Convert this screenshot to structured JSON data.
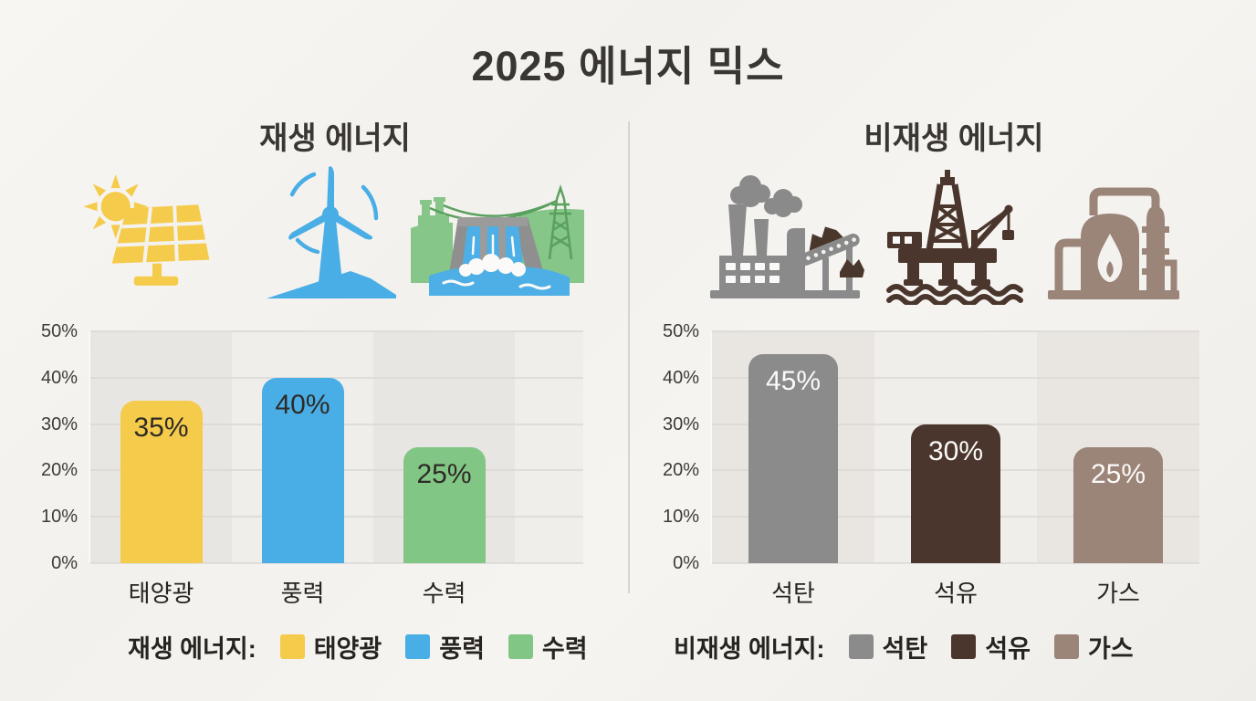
{
  "title": "2025 에너지 믹스",
  "unit": "%",
  "panels": [
    {
      "subtitle": "재생 에너지",
      "icons": [
        "solar-panel-icon",
        "wind-turbine-icon",
        "hydro-dam-icon"
      ],
      "legend_title": "재생 에너지:",
      "legend": [
        {
          "label": "태양광",
          "color": "#F5CB4B"
        },
        {
          "label": "풍력",
          "color": "#49AEE6"
        },
        {
          "label": "수력",
          "color": "#82C685"
        }
      ]
    },
    {
      "subtitle": "비재생 에너지",
      "icons": [
        "coal-plant-icon",
        "oil-rig-icon",
        "gas-refinery-icon"
      ],
      "legend_title": "비재생 에너지:",
      "legend": [
        {
          "label": "석탄",
          "color": "#8B8B8B"
        },
        {
          "label": "석유",
          "color": "#4B362D"
        },
        {
          "label": "가스",
          "color": "#9B8478"
        }
      ]
    }
  ],
  "chart_data": [
    {
      "type": "bar",
      "title": "재생 에너지",
      "categories": [
        "태양광",
        "풍력",
        "수력"
      ],
      "values": [
        35,
        40,
        25
      ],
      "value_labels": [
        "35%",
        "40%",
        "25%"
      ],
      "bar_colors": [
        "#F5CB4B",
        "#49AEE6",
        "#82C685"
      ],
      "value_label_colors": [
        "#2e2b27",
        "#2e2b27",
        "#2e2b27"
      ],
      "ylabel": "",
      "xlabel": "",
      "ylim": [
        0,
        50
      ],
      "yticks": [
        "0%",
        "10%",
        "20%",
        "30%",
        "40%",
        "50%"
      ],
      "grid": true,
      "legend_position": "bottom"
    },
    {
      "type": "bar",
      "title": "비재생 에너지",
      "categories": [
        "석탄",
        "석유",
        "가스"
      ],
      "values": [
        45,
        30,
        25
      ],
      "value_labels": [
        "45%",
        "30%",
        "25%"
      ],
      "bar_colors": [
        "#8B8B8B",
        "#4B362D",
        "#9B8478"
      ],
      "value_label_colors": [
        "#fbfaf8",
        "#fbfaf8",
        "#fbfaf8"
      ],
      "ylabel": "",
      "xlabel": "",
      "ylim": [
        0,
        50
      ],
      "yticks": [
        "0%",
        "10%",
        "20%",
        "30%",
        "40%",
        "50%"
      ],
      "grid": true,
      "legend_position": "bottom"
    }
  ]
}
